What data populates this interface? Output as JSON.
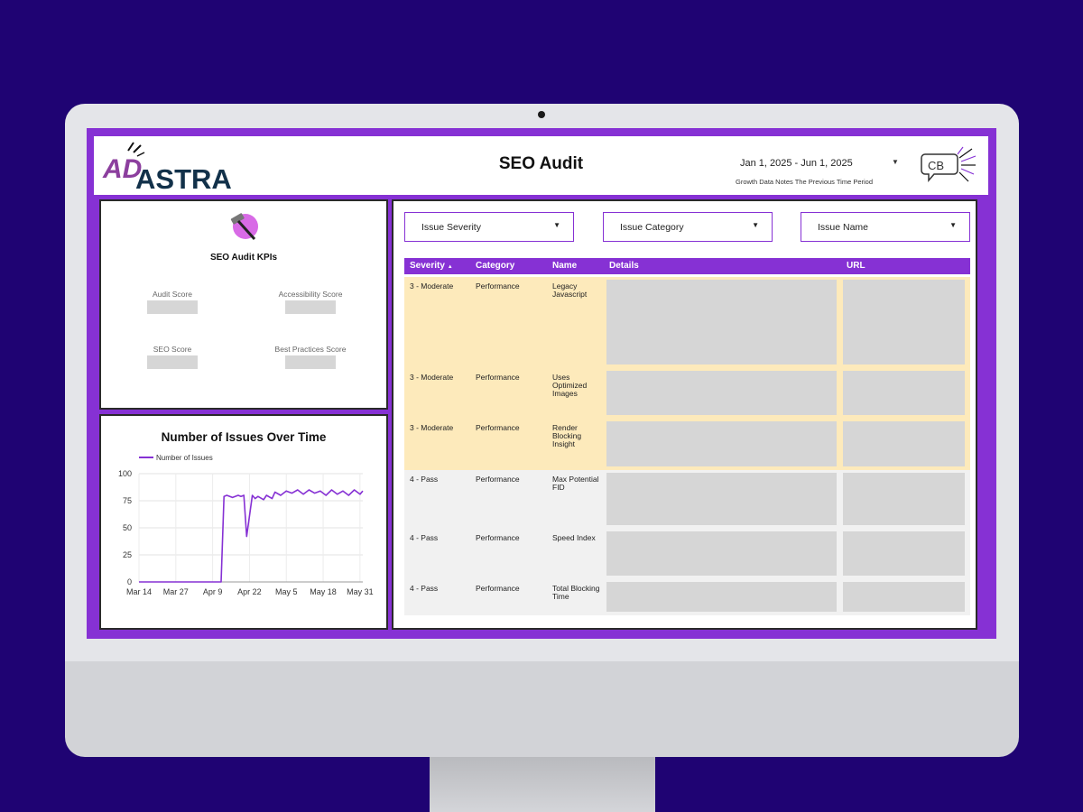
{
  "header": {
    "logo_text": "ADASTRA",
    "title": "SEO Audit",
    "date_range": "Jan 1, 2025 - Jun 1, 2025",
    "date_note": "Growth Data Notes The Previous Time Period",
    "right_logo_text": "CB"
  },
  "kpis": {
    "title": "SEO Audit KPIs",
    "items": [
      {
        "label": "Audit Score"
      },
      {
        "label": "Accessibility Score"
      },
      {
        "label": "SEO Score"
      },
      {
        "label": "Best Practices Score"
      }
    ]
  },
  "filters": [
    {
      "label": "Issue Severity"
    },
    {
      "label": "Issue Category"
    },
    {
      "label": "Issue Name"
    }
  ],
  "table": {
    "columns": [
      "Severity",
      "Category",
      "Name",
      "Details",
      "URL"
    ],
    "sort_indicator": "▲",
    "rows": [
      {
        "severity": "3 - Moderate",
        "category": "Performance",
        "name": "Legacy Javascript",
        "highlight": true
      },
      {
        "severity": "3 - Moderate",
        "category": "Performance",
        "name": "Uses Optimized Images",
        "highlight": true
      },
      {
        "severity": "3 - Moderate",
        "category": "Performance",
        "name": "Render Blocking Insight",
        "highlight": true
      },
      {
        "severity": "4 - Pass",
        "category": "Performance",
        "name": "Max Potential FID",
        "highlight": false
      },
      {
        "severity": "4 - Pass",
        "category": "Performance",
        "name": "Speed Index",
        "highlight": false
      },
      {
        "severity": "4 - Pass",
        "category": "Performance",
        "name": "Total Blocking Time",
        "highlight": false
      }
    ]
  },
  "colors": {
    "accent": "#8631d4",
    "background": "#1f0373",
    "highlight_row": "#fdeabb",
    "pass_row": "#f1f1f1",
    "placeholder": "#d6d6d6"
  },
  "chart_data": {
    "type": "line",
    "title": "Number of Issues Over Time",
    "legend": "top-left",
    "series": [
      {
        "name": "Number of Issues",
        "color": "#8631d4",
        "x": [
          "2025-03-14",
          "2025-04-12",
          "2025-04-13",
          "2025-04-14",
          "2025-04-16",
          "2025-04-18",
          "2025-04-19",
          "2025-04-20",
          "2025-04-21",
          "2025-04-23",
          "2025-04-24",
          "2025-04-25",
          "2025-04-27",
          "2025-04-28",
          "2025-04-30",
          "2025-05-01",
          "2025-05-03",
          "2025-05-05",
          "2025-05-07",
          "2025-05-09",
          "2025-05-11",
          "2025-05-13",
          "2025-05-15",
          "2025-05-17",
          "2025-05-19",
          "2025-05-21",
          "2025-05-23",
          "2025-05-25",
          "2025-05-27",
          "2025-05-29",
          "2025-05-31",
          "2025-06-01"
        ],
        "values": [
          0,
          0,
          79,
          80,
          78,
          80,
          79,
          80,
          42,
          80,
          77,
          79,
          76,
          80,
          77,
          83,
          80,
          84,
          82,
          85,
          81,
          85,
          82,
          84,
          80,
          85,
          81,
          84,
          80,
          85,
          81,
          84
        ]
      }
    ],
    "x_ticks": [
      "Mar 14",
      "Mar 27",
      "Apr 9",
      "Apr 22",
      "May 5",
      "May 18",
      "May 31"
    ],
    "y_ticks": [
      0,
      25,
      50,
      75,
      100
    ],
    "ylim": [
      0,
      100
    ],
    "grid": true
  }
}
